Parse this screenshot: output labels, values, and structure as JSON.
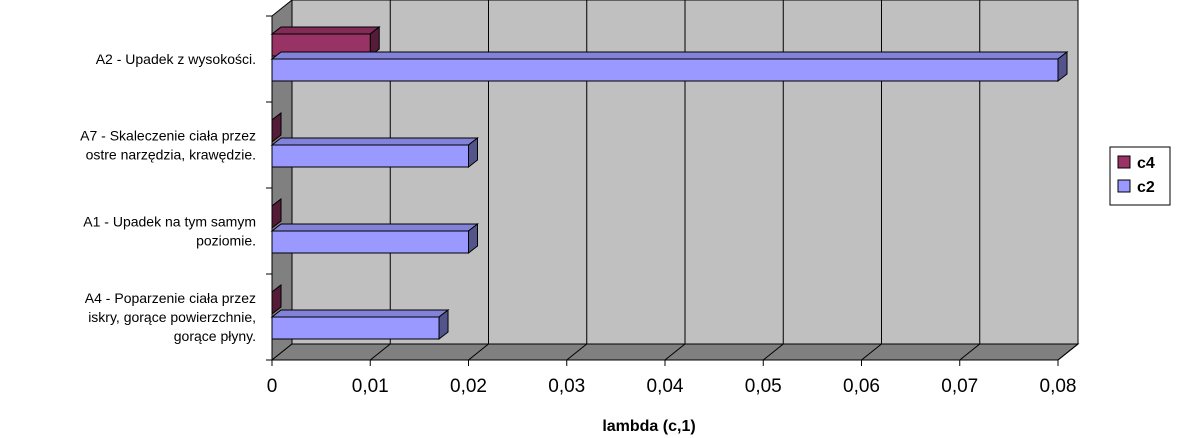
{
  "chart_data": {
    "type": "bar",
    "orientation": "horizontal",
    "three_d": true,
    "categories": [
      [
        "A2 - Upadek z wysokości."
      ],
      [
        "A7 - Skaleczenie ciała przez",
        "ostre narzędzia, krawędzie."
      ],
      [
        "A1 - Upadek na tym samym",
        "poziomie."
      ],
      [
        "A4 - Poparzenie ciała przez",
        "iskry, gorące powierzchnie,",
        "gorące płyny."
      ]
    ],
    "series": [
      {
        "name": "c4",
        "values": [
          0.01,
          0.0,
          0.0,
          0.0
        ],
        "color": "#993366"
      },
      {
        "name": "c2",
        "values": [
          0.08,
          0.02,
          0.02,
          0.017
        ],
        "color": "#9999FF"
      }
    ],
    "xlabel": "lambda (c,1)",
    "xlim": [
      0,
      0.08
    ],
    "xticks": [
      "0",
      "0,01",
      "0,02",
      "0,03",
      "0,04",
      "0,05",
      "0,06",
      "0,07",
      "0,08"
    ],
    "grid": true,
    "legend_position": "right",
    "colors": {
      "plot_bg": "#C0C0C0",
      "grid": "#000000",
      "wall_side": "#808080"
    }
  }
}
